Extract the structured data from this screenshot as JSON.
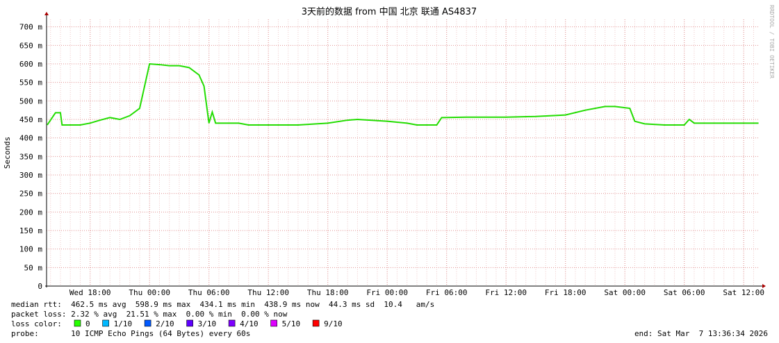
{
  "chart_data": {
    "type": "line",
    "title": "3天前的数据 from 中国 北京 联通 AS4837",
    "y_label": "Seconds",
    "watermark": "RRDTOOL / TOBI OETIKER",
    "xlim": [
      "Wed 13:36",
      "Sat 13:36"
    ],
    "xticks": [
      "Wed 18:00",
      "Thu 00:00",
      "Thu 06:00",
      "Thu 12:00",
      "Thu 18:00",
      "Fri 00:00",
      "Fri 06:00",
      "Fri 12:00",
      "Fri 18:00",
      "Sat 00:00",
      "Sat 06:00",
      "Sat 12:00"
    ],
    "ylim": [
      0,
      0.72
    ],
    "yticks": [
      0,
      {
        "value": 0.05,
        "label": "50 m"
      },
      {
        "value": 0.1,
        "label": "100 m"
      },
      {
        "value": 0.15,
        "label": "150 m"
      },
      {
        "value": 0.2,
        "label": "200 m"
      },
      {
        "value": 0.25,
        "label": "250 m"
      },
      {
        "value": 0.3,
        "label": "300 m"
      },
      {
        "value": 0.35,
        "label": "350 m"
      },
      {
        "value": 0.4,
        "label": "400 m"
      },
      {
        "value": 0.45,
        "label": "450 m"
      },
      {
        "value": 0.5,
        "label": "500 m"
      },
      {
        "value": 0.55,
        "label": "550 m"
      },
      {
        "value": 0.6,
        "label": "600 m"
      },
      {
        "value": 0.65,
        "label": "650 m"
      },
      {
        "value": 0.7,
        "label": "700 m"
      }
    ],
    "grid": true,
    "x": [
      "Wed 13:40",
      "Wed 14:30",
      "Wed 15:00",
      "Wed 15:10",
      "Wed 17:00",
      "Wed 18:00",
      "Wed 19:00",
      "Wed 20:00",
      "Wed 21:00",
      "Wed 22:00",
      "Wed 23:00",
      "Thu 00:00",
      "Thu 01:00",
      "Thu 02:00",
      "Thu 03:00",
      "Thu 04:00",
      "Thu 05:00",
      "Thu 05:30",
      "Thu 06:00",
      "Thu 06:20",
      "Thu 06:40",
      "Thu 09:00",
      "Thu 10:00",
      "Thu 12:00",
      "Thu 15:00",
      "Thu 18:00",
      "Thu 20:00",
      "Thu 21:00",
      "Fri 00:00",
      "Fri 02:00",
      "Fri 03:00",
      "Fri 05:00",
      "Fri 05:30",
      "Fri 08:00",
      "Fri 12:00",
      "Fri 15:00",
      "Fri 18:00",
      "Fri 20:00",
      "Fri 22:00",
      "Fri 23:00",
      "Sat 00:30",
      "Sat 01:00",
      "Sat 02:00",
      "Sat 04:00",
      "Sat 06:00",
      "Sat 06:30",
      "Sat 07:00",
      "Sat 13:30"
    ],
    "series": [
      {
        "name": "median rtt",
        "color": "#22dd00",
        "values": [
          0.435,
          0.468,
          0.468,
          0.435,
          0.435,
          0.44,
          0.448,
          0.455,
          0.45,
          0.46,
          0.48,
          0.6,
          0.598,
          0.595,
          0.595,
          0.59,
          0.57,
          0.54,
          0.44,
          0.47,
          0.44,
          0.44,
          0.435,
          0.435,
          0.435,
          0.44,
          0.448,
          0.45,
          0.445,
          0.44,
          0.435,
          0.435,
          0.455,
          0.456,
          0.456,
          0.458,
          0.462,
          0.475,
          0.485,
          0.485,
          0.48,
          0.445,
          0.438,
          0.435,
          0.435,
          0.45,
          0.44,
          0.44
        ]
      }
    ],
    "stats": [
      "median rtt:  462.5 ms avg  598.9 ms max  434.1 ms min  438.9 ms now  44.3 ms sd  10.4   am/s",
      "packet loss: 2.32 % avg  21.51 % max  0.00 % min  0.00 % now"
    ],
    "loss_label": "loss color:",
    "loss_colors": [
      {
        "name": "0",
        "color": "#26ff00"
      },
      {
        "name": "1/10",
        "color": "#00b8ff"
      },
      {
        "name": "2/10",
        "color": "#0059ff"
      },
      {
        "name": "3/10",
        "color": "#5e00ff"
      },
      {
        "name": "4/10",
        "color": "#7e00ff"
      },
      {
        "name": "5/10",
        "color": "#dd00ff"
      },
      {
        "name": "9/10",
        "color": "#ff0000"
      }
    ],
    "probe": "probe:       10 ICMP Echo Pings (64 Bytes) every 60s",
    "end": "end: Sat Mar  7 13:36:34 2026"
  }
}
